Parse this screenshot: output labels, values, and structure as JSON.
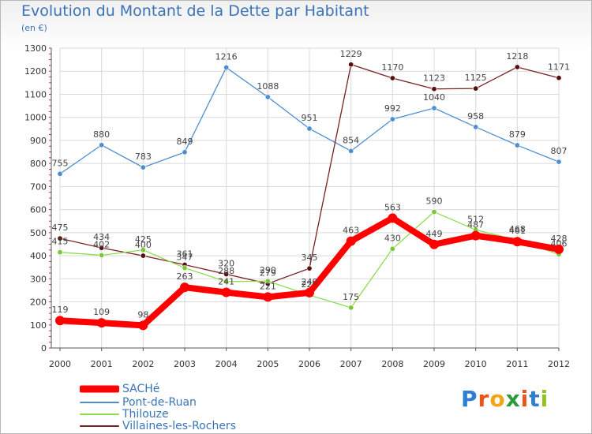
{
  "title": "Evolution du Montant de la Dette par Habitant",
  "subtitle": "(en €)",
  "brand": {
    "letters": [
      "P",
      "r",
      "o",
      "x",
      "i",
      "t",
      "i"
    ],
    "colors": [
      "#2f7fd0",
      "#e8541a",
      "#f2a516",
      "#2f9a3a",
      "#e8541a",
      "#2f7fd0",
      "#8fc31f"
    ]
  },
  "legend": [
    {
      "name": "SACHé",
      "color": "#ff0000"
    },
    {
      "name": "Pont-de-Ruan",
      "color": "#4f8fd0"
    },
    {
      "name": "Thilouze",
      "color": "#8fdc4f"
    },
    {
      "name": "Villaines-les-Rochers",
      "color": "#7a2020"
    }
  ],
  "chart_data": {
    "type": "line",
    "title": "Evolution du Montant de la Dette par Habitant",
    "subtitle": "(en €)",
    "x": [
      "2000",
      "2001",
      "2002",
      "2003",
      "2004",
      "2005",
      "2006",
      "2007",
      "2008",
      "2009",
      "2010",
      "2011",
      "2012"
    ],
    "ylim": [
      0,
      1300
    ],
    "yticks": [
      0,
      100,
      200,
      300,
      400,
      500,
      600,
      700,
      800,
      900,
      1000,
      1100,
      1200,
      1300
    ],
    "grid": true,
    "legend_position": "bottom-left",
    "series": [
      {
        "name": "Pont-de-Ruan",
        "color": "#4f8fd0",
        "marker": "#4f8fd0",
        "values": [
          755,
          880,
          783,
          849,
          1216,
          1088,
          951,
          854,
          992,
          1040,
          958,
          879,
          807
        ]
      },
      {
        "name": "Villaines-les-Rochers",
        "color": "#7a2020",
        "marker": "#5a1010",
        "values": [
          475,
          434,
          400,
          361,
          320,
          279,
          345,
          1229,
          1170,
          1123,
          1125,
          1218,
          1171
        ]
      },
      {
        "name": "Thilouze",
        "color": "#8fdc4f",
        "marker": "#7ac83a",
        "values": [
          415,
          402,
          425,
          347,
          288,
          290,
          229,
          175,
          430,
          590,
          512,
          468,
          406
        ]
      },
      {
        "name": "SACHé",
        "color": "#ff0000",
        "marker": "#ff0000",
        "values": [
          119,
          109,
          98,
          263,
          241,
          221,
          240,
          463,
          563,
          449,
          487,
          461,
          428
        ]
      }
    ]
  }
}
